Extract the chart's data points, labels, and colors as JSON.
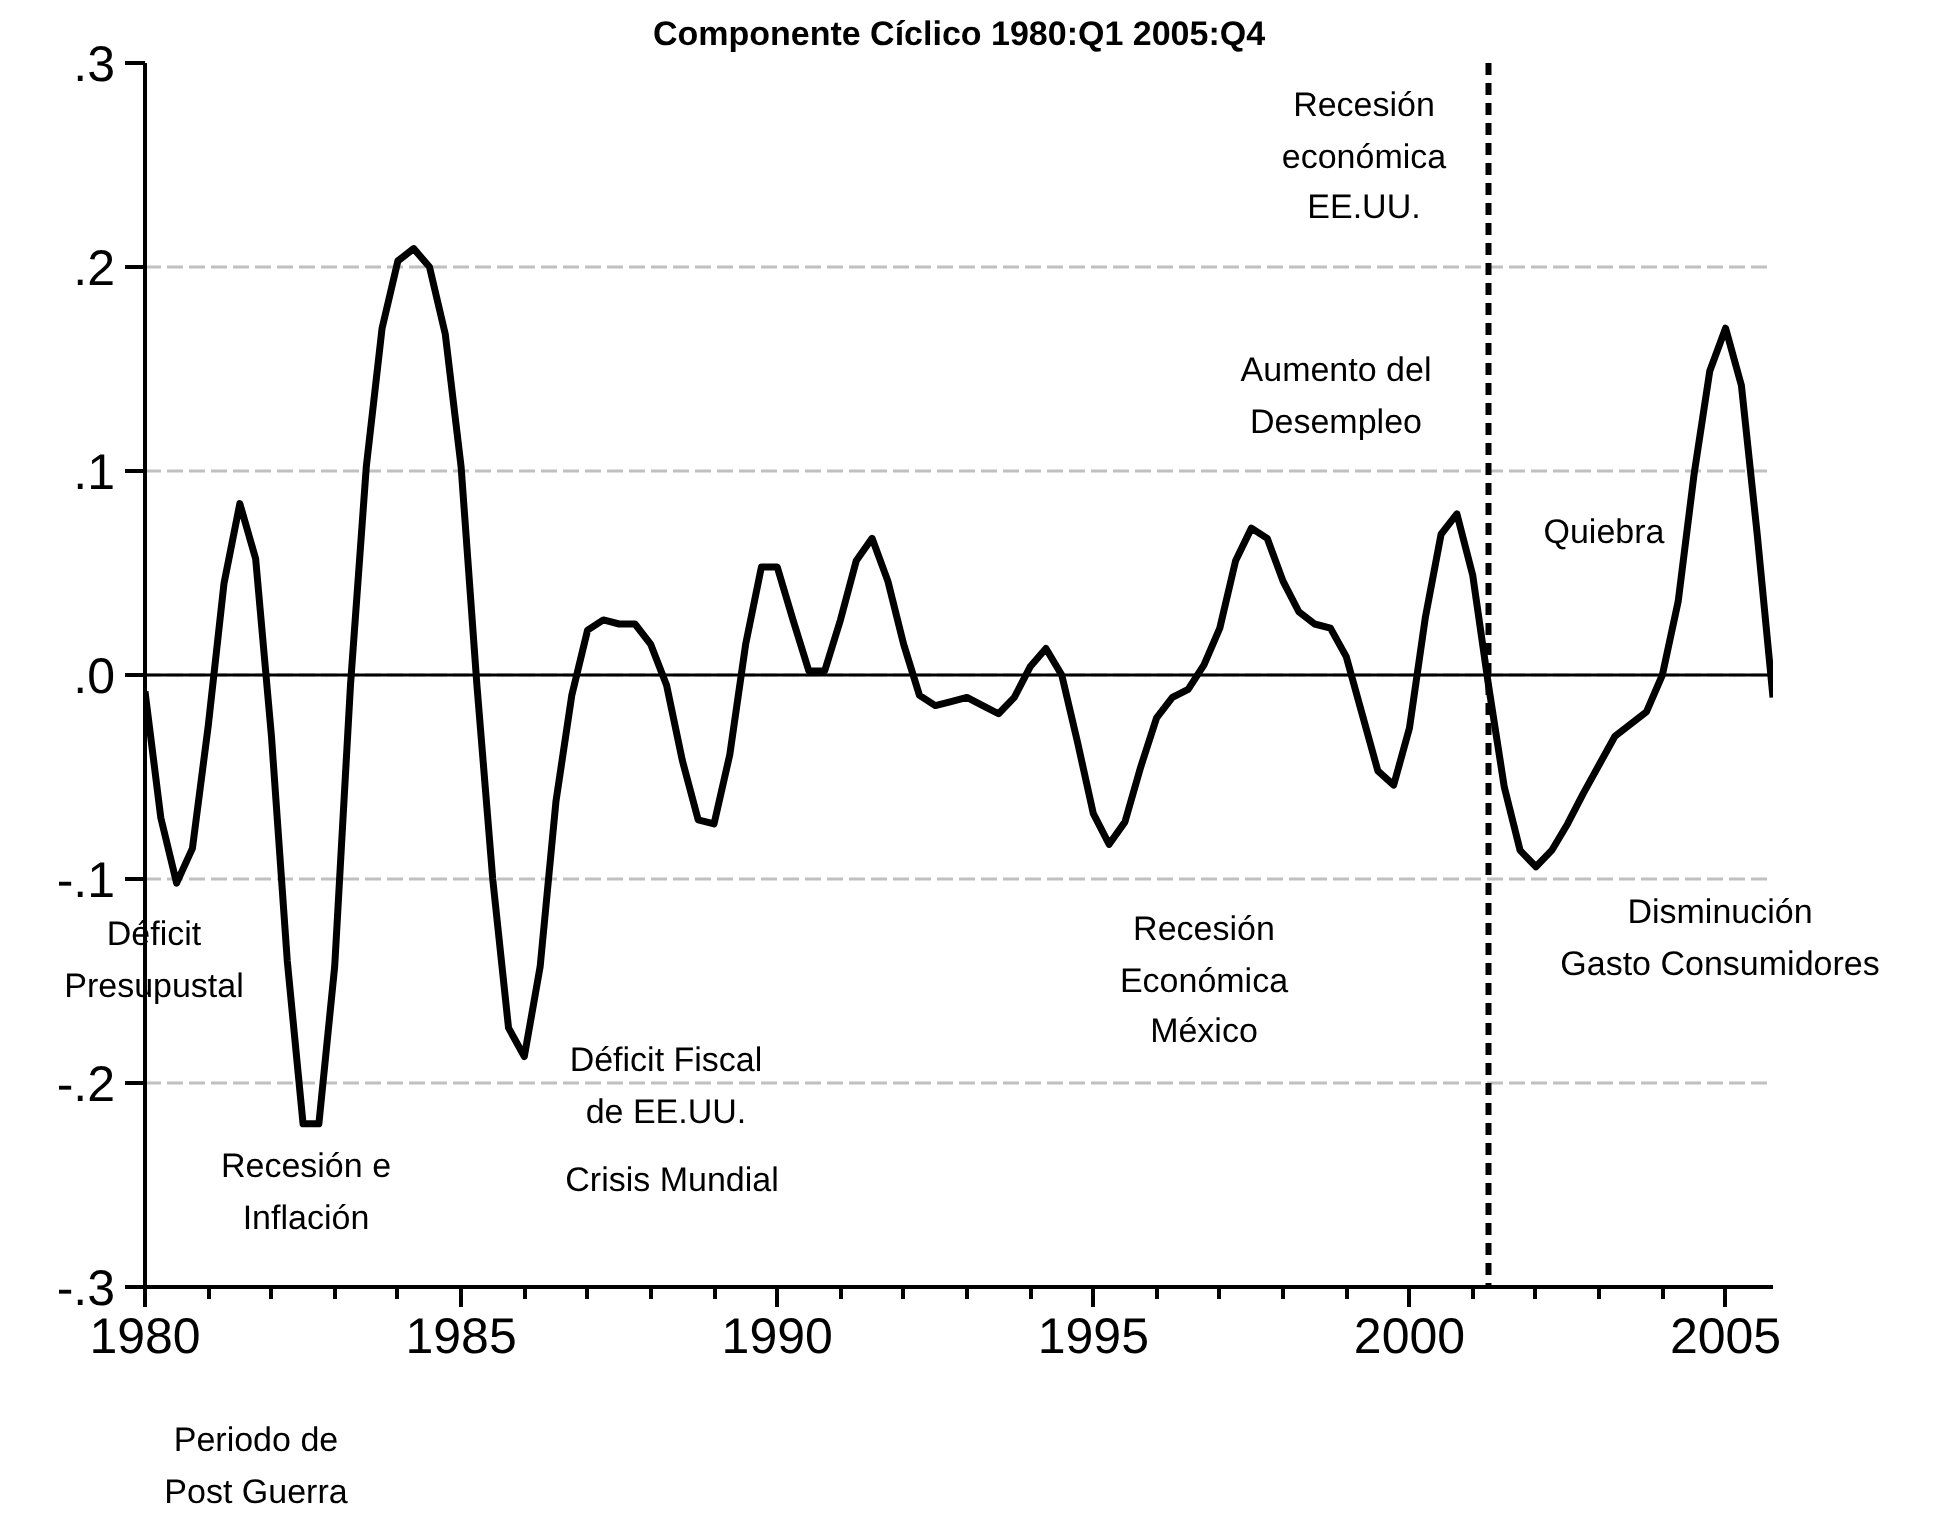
{
  "chart_data": {
    "type": "line",
    "title": "Componente Cíclico 1980:Q1 2005:Q4",
    "x": [
      1980,
      1980.25,
      1980.5,
      1980.75,
      1981,
      1981.25,
      1981.5,
      1981.75,
      1982,
      1982.25,
      1982.5,
      1982.75,
      1983,
      1983.25,
      1983.5,
      1983.75,
      1984,
      1984.25,
      1984.5,
      1984.75,
      1985,
      1985.25,
      1985.5,
      1985.75,
      1986,
      1986.25,
      1986.5,
      1986.75,
      1987,
      1987.25,
      1987.5,
      1987.75,
      1988,
      1988.25,
      1988.5,
      1988.75,
      1989,
      1989.25,
      1989.5,
      1989.75,
      1990,
      1990.25,
      1990.5,
      1990.75,
      1991,
      1991.25,
      1991.5,
      1991.75,
      1992,
      1992.25,
      1992.5,
      1992.75,
      1993,
      1993.25,
      1993.5,
      1993.75,
      1994,
      1994.25,
      1994.5,
      1994.75,
      1995,
      1995.25,
      1995.5,
      1995.75,
      1996,
      1996.25,
      1996.5,
      1996.75,
      1997,
      1997.25,
      1997.5,
      1997.75,
      1998,
      1998.25,
      1998.5,
      1998.75,
      1999,
      1999.25,
      1999.5,
      1999.75,
      2000,
      2000.25,
      2000.5,
      2000.75,
      2001,
      2001.25,
      2001.5,
      2001.75,
      2002,
      2002.25,
      2002.5,
      2002.75,
      2003,
      2003.25,
      2003.5,
      2003.75,
      2004,
      2004.25,
      2004.5,
      2004.75,
      2005,
      2005.25,
      2005.5,
      2005.75
    ],
    "series": [
      {
        "color": "#000000",
        "values": [
          -0.008,
          -0.07,
          -0.102,
          -0.085,
          -0.025,
          0.045,
          0.084,
          0.057,
          -0.03,
          -0.14,
          -0.22,
          -0.22,
          -0.143,
          -0.005,
          0.102,
          0.17,
          0.203,
          0.209,
          0.2,
          0.167,
          0.102,
          -0.005,
          -0.1,
          -0.173,
          -0.187,
          -0.143,
          -0.062,
          -0.01,
          0.022,
          0.027,
          0.025,
          0.025,
          0.015,
          -0.005,
          -0.042,
          -0.071,
          -0.073,
          -0.039,
          0.015,
          0.053,
          0.053,
          0.027,
          0.002,
          0.002,
          0.027,
          0.056,
          0.067,
          0.046,
          0.015,
          -0.01,
          -0.015,
          -0.013,
          -0.011,
          -0.015,
          -0.019,
          -0.011,
          0.004,
          0.013,
          0.0,
          -0.033,
          -0.068,
          -0.083,
          -0.072,
          -0.045,
          -0.021,
          -0.011,
          -0.007,
          0.005,
          0.023,
          0.056,
          0.072,
          0.067,
          0.046,
          0.031,
          0.025,
          0.023,
          0.009,
          -0.019,
          -0.047,
          -0.054,
          -0.026,
          0.028,
          0.069,
          0.079,
          0.049,
          -0.005,
          -0.055,
          -0.086,
          -0.094,
          -0.086,
          -0.073,
          -0.058,
          -0.044,
          -0.03,
          -0.024,
          -0.018,
          0.0,
          0.036,
          0.098,
          0.149,
          0.17,
          0.142,
          0.069,
          -0.011
        ]
      }
    ],
    "xlim": [
      1980,
      2005.75
    ],
    "xticks": [
      1980,
      {
        "value": 1981,
        "label": null
      },
      {
        "value": 1982,
        "label": null
      },
      {
        "value": 1983,
        "label": null
      },
      {
        "value": 1984,
        "label": null
      },
      1985,
      {
        "value": 1986,
        "label": null
      },
      {
        "value": 1987,
        "label": null
      },
      {
        "value": 1988,
        "label": null
      },
      {
        "value": 1989,
        "label": null
      },
      1990,
      {
        "value": 1991,
        "label": null
      },
      {
        "value": 1992,
        "label": null
      },
      {
        "value": 1993,
        "label": null
      },
      {
        "value": 1994,
        "label": null
      },
      1995,
      {
        "value": 1996,
        "label": null
      },
      {
        "value": 1997,
        "label": null
      },
      {
        "value": 1998,
        "label": null
      },
      {
        "value": 1999,
        "label": null
      },
      2000,
      {
        "value": 2001,
        "label": null
      },
      {
        "value": 2002,
        "label": null
      },
      {
        "value": 2003,
        "label": null
      },
      {
        "value": 2004,
        "label": null
      },
      2005
    ],
    "ylim": [
      -0.3,
      0.3
    ],
    "yticks": [
      {
        "value": -0.3,
        "label": "-.3"
      },
      {
        "value": -0.2,
        "label": "-.2"
      },
      {
        "value": -0.1,
        "label": "-.1"
      },
      {
        "value": 0,
        "label": ".0"
      },
      {
        "value": 0.1,
        "label": ".1"
      },
      {
        "value": 0.2,
        "label": ".2"
      },
      {
        "value": 0.3,
        "label": ".3"
      }
    ],
    "grid": "y",
    "line_style": "solid",
    "ref_lines": [
      {
        "axis": "y",
        "value": 0,
        "color": "#000000",
        "line_style": "solid"
      },
      {
        "axis": "x",
        "value": 2001.25,
        "color": "#000000",
        "line_style": "dashed"
      }
    ],
    "annotations": [
      "Déficit\nPresupustal",
      "Recesión e\nInflación",
      "Déficit Fiscal\nde EE.UU.",
      "Crisis Mundial",
      "Periodo de\nPost Guerra",
      "Recesión\nEconómica\nMéxico",
      "Disminución\nGasto Consumidores",
      "Recesión\neconómica\nEE.UU.",
      "Aumento del\nDesempleo",
      "Quiebra"
    ]
  }
}
